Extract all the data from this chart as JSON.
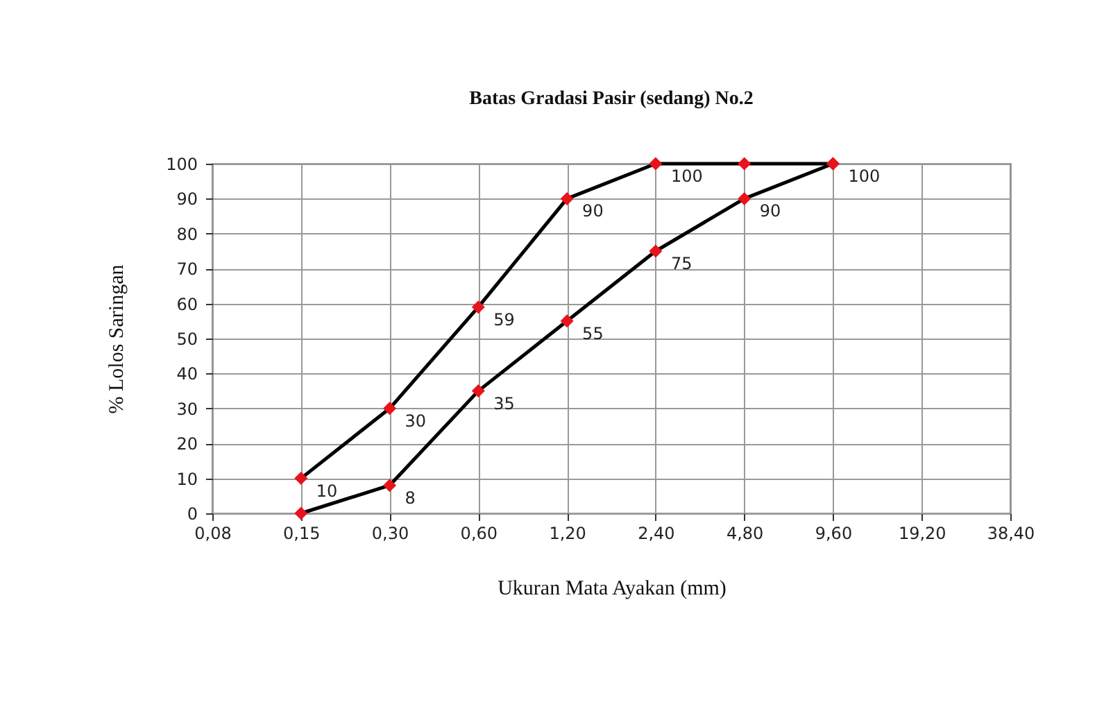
{
  "chart_data": {
    "type": "line",
    "title": "Batas Gradasi Pasir (sedang) No.2",
    "xlabel": "Ukuran Mata Ayakan (mm)",
    "ylabel": "% Lolos Saringan",
    "categories": [
      "0,08",
      "0,15",
      "0,30",
      "0,60",
      "1,20",
      "2,40",
      "4,80",
      "9,60",
      "19,20",
      "38,40"
    ],
    "series": [
      {
        "color": "#000000",
        "colors": [
          null,
          "#e8141b",
          "#e8141b",
          "#e8141b",
          "#e8141b",
          "#e8141b",
          "#e8141b",
          "#e8141b",
          null,
          null
        ],
        "values": [
          null,
          10,
          30,
          59,
          90,
          100,
          100,
          100,
          null,
          null
        ],
        "value_labels": [
          null,
          "10",
          "30",
          "59",
          "90",
          "100",
          null,
          null,
          null,
          null
        ]
      },
      {
        "color": "#000000",
        "colors": [
          null,
          "#e8141b",
          "#e8141b",
          "#e8141b",
          "#e8141b",
          "#e8141b",
          "#e8141b",
          "#e8141b",
          null,
          null
        ],
        "values": [
          null,
          0,
          8,
          35,
          55,
          75,
          90,
          100,
          null,
          null
        ],
        "value_labels": [
          null,
          null,
          "8",
          "35",
          "55",
          "75",
          "90",
          "100",
          null,
          null
        ]
      }
    ],
    "ylim": [
      0,
      100
    ],
    "yticks": [
      0,
      10,
      20,
      30,
      40,
      50,
      60,
      70,
      80,
      90,
      100
    ],
    "grid": true,
    "marker": "diamond",
    "line_style": "solid"
  }
}
